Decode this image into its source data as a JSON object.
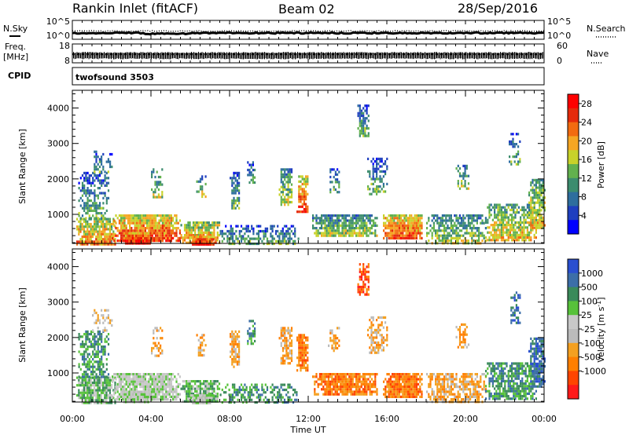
{
  "header": {
    "station": "Rankin Inlet (fitACF)",
    "beam": "Beam 02",
    "date": "28/Sep/2016"
  },
  "summary": {
    "nsky_label": "N.Sky",
    "nsky_ticks": [
      "10^5",
      "10^0"
    ],
    "nsearch_label": "N.Search",
    "nsearch_ticks": [
      "10^5",
      "10^0"
    ],
    "freq_label": "Freq.",
    "freq_unit": "[MHz]",
    "freq_ticks": [
      "18",
      "8"
    ],
    "nave_label": "Nave",
    "nave_ticks": [
      "60",
      "0"
    ],
    "cpid_label": "CPID",
    "cpid_value": "twofsound 3503"
  },
  "colors": {
    "power": [
      "#0000ff",
      "#1f3fbf",
      "#2e6e9e",
      "#3c8c6e",
      "#62b14e",
      "#c8d22a",
      "#f5a623",
      "#f26b10",
      "#e52b0b",
      "#ff0000"
    ],
    "velocity": [
      "#ff1a1a",
      "#ff4500",
      "#ff7f00",
      "#f4a020",
      "#bbbbbb",
      "#c8c8c8",
      "#57c23a",
      "#3a8a5a",
      "#3c6ea8",
      "#2a4fd0"
    ]
  },
  "chart_data": [
    {
      "type": "heatmap",
      "title": "",
      "xlabel": "Time UT",
      "ylabel": "Slant Range [km]",
      "x_ticks": [
        "00:00",
        "04:00",
        "08:00",
        "12:00",
        "16:00",
        "20:00",
        "00:00"
      ],
      "y_ticks": [
        1000,
        2000,
        3000,
        4000
      ],
      "xlim_hours": [
        0,
        24
      ],
      "ylim_km": [
        180,
        4500
      ],
      "colorbar_label": "Power [dB]",
      "colorbar_ticks": [
        4,
        8,
        12,
        16,
        20,
        24,
        28
      ],
      "colorbar_range": [
        0,
        30
      ]
    },
    {
      "type": "heatmap",
      "title": "",
      "xlabel": "Time UT",
      "ylabel": "Slant Range [km]",
      "x_ticks": [
        "00:00",
        "04:00",
        "08:00",
        "12:00",
        "16:00",
        "20:00",
        "00:00"
      ],
      "y_ticks": [
        1000,
        2000,
        3000,
        4000
      ],
      "xlim_hours": [
        0,
        24
      ],
      "ylim_km": [
        180,
        4500
      ],
      "colorbar_label": "Velocity [m s",
      "colorbar_label_sup": "-1",
      "colorbar_label_end": "]",
      "colorbar_ticks": [
        "1000",
        "500",
        "100",
        "25",
        "-25",
        "-100",
        "-500",
        "-1000"
      ],
      "colorbar_range": [
        -1000,
        1000
      ]
    }
  ]
}
